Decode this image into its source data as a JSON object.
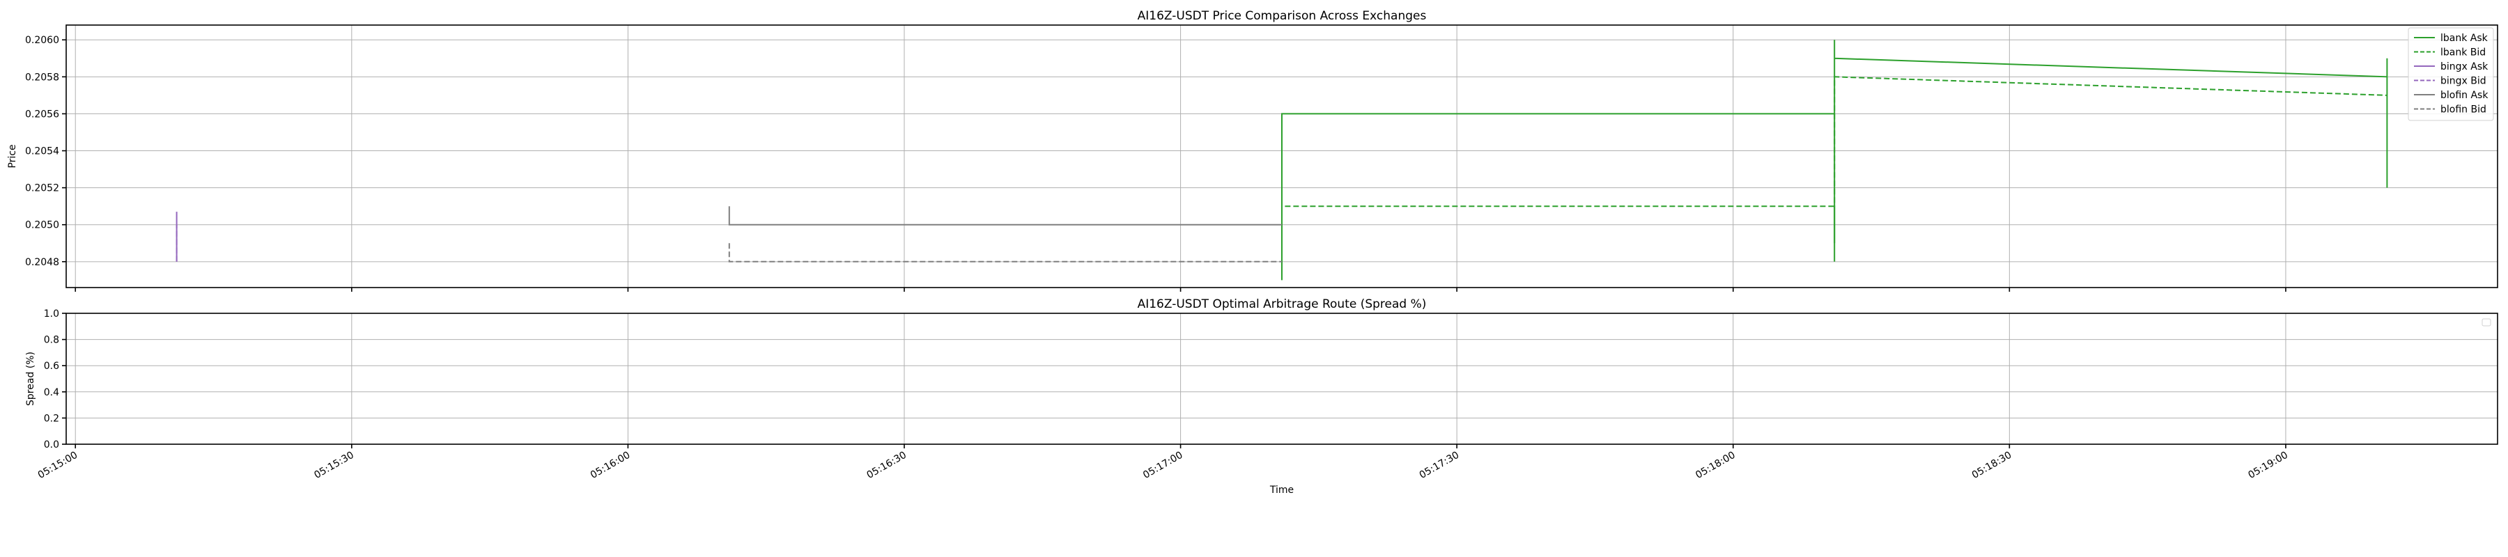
{
  "chart_data": [
    {
      "type": "line",
      "title": "AI16Z-USDT Price Comparison Across Exchanges",
      "xlabel": "",
      "ylabel": "Price",
      "xlim": [
        "05:14:59",
        "05:19:23"
      ],
      "ylim": [
        0.20466,
        0.20608
      ],
      "yticks": [
        "0.2048",
        "0.2050",
        "0.2052",
        "0.2054",
        "0.2056",
        "0.2058",
        "0.2060"
      ],
      "ytick_values": [
        0.2048,
        0.205,
        0.2052,
        0.2054,
        0.2056,
        0.2058,
        0.206
      ],
      "grid": true,
      "legend_position": "top-right",
      "series": [
        {
          "name": "lbank Ask",
          "color": "#2ca02c",
          "style": "solid",
          "points": [
            [
              "05:17:11",
              0.2047
            ],
            [
              "05:17:11",
              0.2053
            ],
            [
              "05:17:11",
              0.2056
            ],
            [
              "05:18:11",
              0.2056
            ],
            [
              "05:18:11",
              0.2048
            ],
            [
              "05:18:11",
              0.206
            ],
            [
              "05:18:11",
              0.2059
            ],
            [
              "05:19:11",
              0.2058
            ],
            [
              "05:19:11",
              0.2052
            ],
            [
              "05:19:11",
              0.2059
            ]
          ]
        },
        {
          "name": "lbank Bid",
          "color": "#2ca02c",
          "style": "dashed",
          "points": [
            [
              "05:17:11",
              0.2048
            ],
            [
              "05:17:11",
              0.2051
            ],
            [
              "05:18:11",
              0.2051
            ],
            [
              "05:18:11",
              0.2049
            ],
            [
              "05:18:11",
              0.2058
            ],
            [
              "05:19:11",
              0.2057
            ]
          ]
        },
        {
          "name": "bingx Ask",
          "color": "#9467bd",
          "style": "solid",
          "points": [
            [
              "05:15:11",
              0.2048
            ],
            [
              "05:15:11",
              0.20507
            ]
          ]
        },
        {
          "name": "bingx Bid",
          "color": "#9467bd",
          "style": "dashed",
          "points": [
            [
              "05:15:11",
              0.2048
            ],
            [
              "05:15:11",
              0.205
            ]
          ]
        },
        {
          "name": "blofin Ask",
          "color": "#7f7f7f",
          "style": "solid",
          "points": [
            [
              "05:16:11",
              0.2051
            ],
            [
              "05:16:11",
              0.205
            ],
            [
              "05:17:11",
              0.205
            ]
          ]
        },
        {
          "name": "blofin Bid",
          "color": "#7f7f7f",
          "style": "dashed",
          "points": [
            [
              "05:16:11",
              0.2049
            ],
            [
              "05:16:11",
              0.2048
            ],
            [
              "05:17:11",
              0.2048
            ]
          ]
        }
      ]
    },
    {
      "type": "line",
      "title": "AI16Z-USDT Optimal Arbitrage Route (Spread %)",
      "xlabel": "Time",
      "ylabel": "Spread (%)",
      "ylim": [
        0.0,
        1.0
      ],
      "yticks": [
        "0.0",
        "0.2",
        "0.4",
        "0.6",
        "0.8",
        "1.0"
      ],
      "ytick_values": [
        0.0,
        0.2,
        0.4,
        0.6,
        0.8,
        1.0
      ],
      "xticks": [
        "05:15:00",
        "05:15:30",
        "05:16:00",
        "05:16:30",
        "05:17:00",
        "05:17:30",
        "05:18:00",
        "05:18:30",
        "05:19:00"
      ],
      "grid": true,
      "series": []
    }
  ]
}
